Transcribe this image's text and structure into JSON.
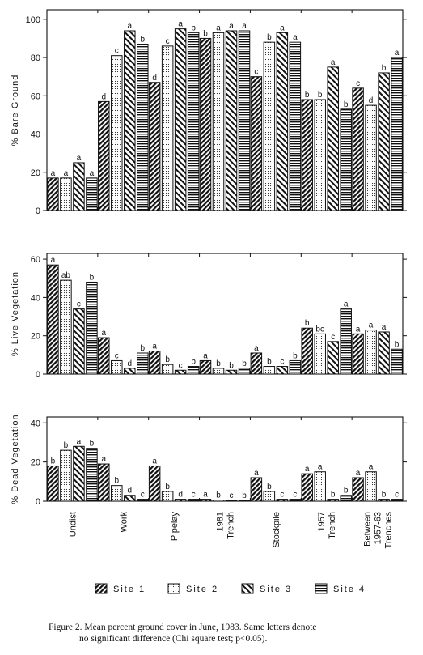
{
  "chart_data": [
    {
      "type": "bar",
      "ylabel": "% Bare Ground",
      "ylim": [
        0,
        105
      ],
      "yticks": [
        0,
        20,
        40,
        60,
        80,
        100
      ],
      "categories": [
        "Undist",
        "Work",
        "Pipelay",
        "1981 Trench",
        "Stockpile",
        "1957 Trench",
        "Between 1957-63 Trenches"
      ],
      "series": [
        {
          "name": "Site 1",
          "values": [
            17,
            57,
            67,
            90,
            70,
            58,
            64
          ],
          "letters": [
            "a",
            "d",
            "d",
            "b",
            "c",
            "b",
            "c"
          ]
        },
        {
          "name": "Site 2",
          "values": [
            17,
            81,
            86,
            93,
            88,
            58,
            55
          ],
          "letters": [
            "a",
            "c",
            "c",
            "a",
            "b",
            "b",
            "d"
          ]
        },
        {
          "name": "Site 3",
          "values": [
            25,
            94,
            95,
            94,
            93,
            75,
            72
          ],
          "letters": [
            "a",
            "a",
            "a",
            "a",
            "a",
            "a",
            "b"
          ]
        },
        {
          "name": "Site 4",
          "values": [
            17,
            87,
            93,
            94,
            88,
            53,
            80
          ],
          "letters": [
            "a",
            "b",
            "b",
            "a",
            "a",
            "b",
            "a"
          ]
        }
      ]
    },
    {
      "type": "bar",
      "ylabel": "% Live Vegetation",
      "ylim": [
        0,
        63
      ],
      "yticks": [
        0,
        20,
        40,
        60
      ],
      "categories": [
        "Undist",
        "Work",
        "Pipelay",
        "1981 Trench",
        "Stockpile",
        "1957 Trench",
        "Between 1957-63 Trenches"
      ],
      "series": [
        {
          "name": "Site 1",
          "values": [
            57,
            19,
            12,
            7,
            11,
            24,
            21
          ],
          "letters": [
            "a",
            "a",
            "a",
            "a",
            "a",
            "b",
            "a"
          ]
        },
        {
          "name": "Site 2",
          "values": [
            49,
            7,
            5,
            3,
            4,
            21,
            23
          ],
          "letters": [
            "ab",
            "c",
            "b",
            "b",
            "b",
            "bc",
            "a"
          ]
        },
        {
          "name": "Site 3",
          "values": [
            34,
            3,
            2,
            2,
            4,
            17,
            22
          ],
          "letters": [
            "c",
            "d",
            "c",
            "b",
            "c",
            "c",
            "a"
          ]
        },
        {
          "name": "Site 4",
          "values": [
            48,
            11,
            4,
            3,
            7,
            34,
            13
          ],
          "letters": [
            "b",
            "b",
            "b",
            "b",
            "b",
            "a",
            "b"
          ]
        }
      ]
    },
    {
      "type": "bar",
      "ylabel": "% Dead Vegetation",
      "ylim": [
        0,
        43
      ],
      "yticks": [
        0,
        20,
        40
      ],
      "categories": [
        "Undist",
        "Work",
        "Pipelay",
        "1981 Trench",
        "Stockpile",
        "1957 Trench",
        "Between 1957-63 Trenches"
      ],
      "series": [
        {
          "name": "Site 1",
          "values": [
            18,
            19,
            18,
            1,
            12,
            14,
            12
          ],
          "letters": [
            "b",
            "a",
            "a",
            "a",
            "a",
            "a",
            "a"
          ]
        },
        {
          "name": "Site 2",
          "values": [
            26,
            8,
            5,
            0.6,
            5,
            15,
            15
          ],
          "letters": [
            "b",
            "b",
            "b",
            "b",
            "b",
            "a",
            "a"
          ]
        },
        {
          "name": "Site 3",
          "values": [
            28,
            3,
            1,
            0.4,
            1,
            1,
            1
          ],
          "letters": [
            "a",
            "d",
            "d",
            "c",
            "c",
            "b",
            "b"
          ]
        },
        {
          "name": "Site 4",
          "values": [
            27,
            1,
            1,
            0.2,
            1,
            3,
            1
          ],
          "letters": [
            "b",
            "c",
            "c",
            "b",
            "c",
            "b",
            "c"
          ]
        }
      ]
    }
  ],
  "x_labels": [
    {
      "lines": [
        "Undist"
      ]
    },
    {
      "lines": [
        "Work"
      ]
    },
    {
      "lines": [
        "Pipelay"
      ]
    },
    {
      "lines": [
        "1981",
        "Trench"
      ]
    },
    {
      "lines": [
        "Stockpile"
      ]
    },
    {
      "lines": [
        "1957",
        "Trench"
      ]
    },
    {
      "lines": [
        "Between",
        "1957-63",
        "Trenches"
      ]
    }
  ],
  "legend": [
    {
      "name": "Site 1",
      "label": "Site 1",
      "pattern": "p-s1"
    },
    {
      "name": "Site 2",
      "label": "Site 2",
      "pattern": "p-s2"
    },
    {
      "name": "Site 3",
      "label": "Site 3",
      "pattern": "p-s3"
    },
    {
      "name": "Site 4",
      "label": "Site 4",
      "pattern": "p-s4"
    }
  ],
  "caption": {
    "line1": "Figure 2.    Mean percent ground cover in June, 1983. Same letters denote",
    "line2": "no significant difference (Chi square test; p<0.05)."
  }
}
